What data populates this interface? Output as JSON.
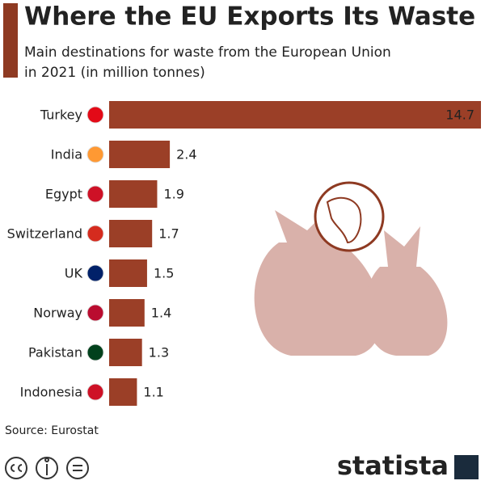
{
  "chart_data": {
    "type": "bar",
    "orientation": "horizontal",
    "title": "Where the EU Exports Its Waste",
    "subtitle": [
      "Main destinations for waste from the European Union",
      "in 2021 (in million tonnes)"
    ],
    "categories": [
      "Turkey",
      "India",
      "Egypt",
      "Switzerland",
      "UK",
      "Norway",
      "Pakistan",
      "Indonesia"
    ],
    "values": [
      14.7,
      2.4,
      1.9,
      1.7,
      1.5,
      1.4,
      1.3,
      1.1
    ],
    "color": "#9b3f27",
    "source": "Source: Eurostat",
    "brand": "statista"
  }
}
